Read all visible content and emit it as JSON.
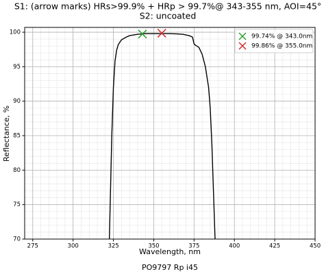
{
  "chart_data": {
    "type": "line",
    "title": "S1: (arrow marks) HRs>99.9% + HRp > 99.7%@ 343-355 nm, AOI=45°",
    "subtitle": "S2: uncoated",
    "x_label": "Wavelength, nm",
    "y_label": "Reflectance, %",
    "footer": "PO9797 Rp i45",
    "xlim": [
      270,
      450
    ],
    "xticks": [
      275,
      300,
      325,
      350,
      375,
      400,
      425,
      450
    ],
    "ylim": [
      70,
      100.7
    ],
    "yticks": [
      70,
      75,
      80,
      85,
      90,
      95,
      100
    ],
    "grid": true,
    "minor_grid": true,
    "legend": "upper right",
    "series": [
      {
        "color": "#000000",
        "marker": "none",
        "x": [
          322.5,
          323,
          324,
          325,
          326,
          327,
          328,
          330,
          333,
          335,
          340,
          345,
          350,
          355,
          360,
          365,
          368,
          370,
          372,
          374,
          375,
          376,
          378,
          380,
          382,
          384,
          385,
          386,
          387,
          388
        ],
        "values": [
          70,
          75,
          85,
          92,
          95.8,
          97.4,
          98.2,
          98.9,
          99.3,
          99.5,
          99.7,
          99.8,
          99.8,
          99.8,
          99.8,
          99.75,
          99.7,
          99.6,
          99.5,
          99.3,
          98.3,
          98.1,
          97.8,
          96.8,
          95,
          92,
          89,
          84,
          77,
          70
        ]
      },
      {
        "name": "99.74% @ 343.0nm",
        "color": "#2ca02c",
        "marker": "x",
        "x": [
          343
        ],
        "values": [
          99.74
        ]
      },
      {
        "name": "99.86% @ 355.0nm",
        "color": "#d62728",
        "marker": "x",
        "x": [
          355
        ],
        "values": [
          99.86
        ]
      }
    ]
  }
}
